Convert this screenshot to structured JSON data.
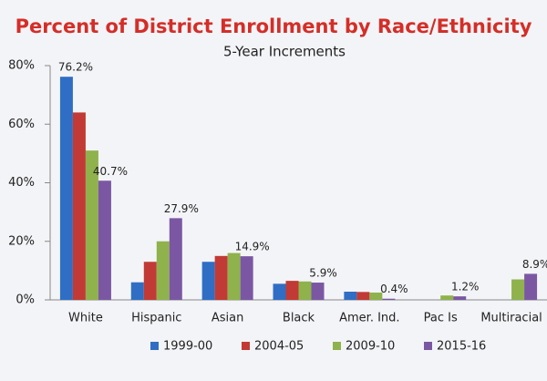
{
  "chart_data": {
    "type": "bar",
    "title": "Percent of District Enrollment by Race/Ethnicity",
    "subtitle": "5-Year Increments",
    "categories": [
      "White",
      "Hispanic",
      "Asian",
      "Black",
      "Amer. Ind.",
      "Pac Is",
      "Multiracial"
    ],
    "series": [
      {
        "name": "1999-00",
        "color": "#2f6ec4",
        "values": [
          76.2,
          6,
          13,
          5.5,
          2.8,
          null,
          null
        ],
        "value_labels": [
          "76.2%",
          null,
          null,
          null,
          null,
          null,
          null
        ]
      },
      {
        "name": "2004-05",
        "color": "#c23a35",
        "values": [
          64,
          13,
          15,
          6.5,
          2.7,
          null,
          null
        ]
      },
      {
        "name": "2009-10",
        "color": "#8fb24c",
        "values": [
          51,
          20,
          16,
          6.3,
          2.5,
          1.5,
          7
        ]
      },
      {
        "name": "2015-16",
        "color": "#7b57a3",
        "values": [
          40.7,
          27.9,
          14.9,
          5.9,
          0.4,
          1.2,
          8.9
        ],
        "value_labels": [
          "40.7%",
          "27.9%",
          "14.9%",
          "5.9%",
          "0.4%",
          "1.2%",
          "8.9%"
        ]
      }
    ],
    "ylim": [
      0,
      80
    ],
    "yticks": [
      {
        "value": 0,
        "label": "0%"
      },
      {
        "value": 20,
        "label": "20%"
      },
      {
        "value": 40,
        "label": "40%"
      },
      {
        "value": 60,
        "label": "60%"
      },
      {
        "value": 80,
        "label": "80%"
      }
    ],
    "grid": false,
    "legend": "bottom"
  }
}
